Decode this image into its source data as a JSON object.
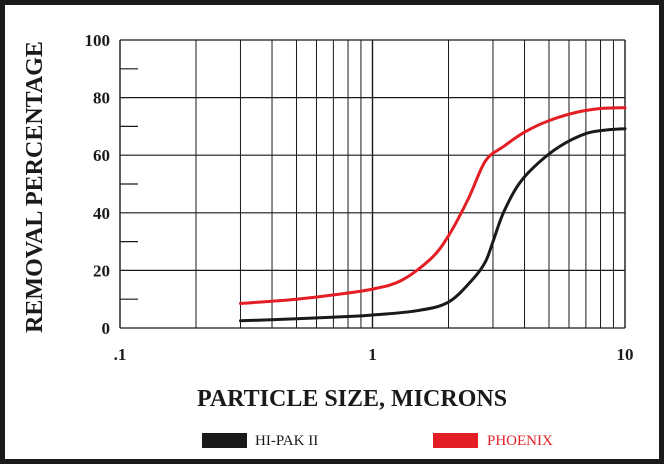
{
  "chart_data": {
    "type": "line",
    "xlabel": "PARTICLE SIZE, MICRONS",
    "ylabel": "REMOVAL PERCENTAGE",
    "x_scale": "log",
    "xlim": [
      0.1,
      10
    ],
    "ylim": [
      0,
      100
    ],
    "x_ticks": [
      {
        "value": 0.1,
        "label": ".1"
      },
      {
        "value": 1,
        "label": "1"
      },
      {
        "value": 10,
        "label": "10"
      }
    ],
    "y_ticks": [
      {
        "value": 0,
        "label": "0"
      },
      {
        "value": 20,
        "label": "20"
      },
      {
        "value": 40,
        "label": "40"
      },
      {
        "value": 60,
        "label": "60"
      },
      {
        "value": 80,
        "label": "80"
      },
      {
        "value": 100,
        "label": "100"
      }
    ],
    "grid": true,
    "legend_position": "bottom",
    "series": [
      {
        "name": "HI-PAK II",
        "color": "#1a1a1a",
        "points": [
          [
            0.3,
            2.5
          ],
          [
            0.5,
            3.2
          ],
          [
            0.8,
            4.0
          ],
          [
            1.0,
            4.5
          ],
          [
            1.5,
            6.0
          ],
          [
            2.0,
            9.0
          ],
          [
            2.5,
            17.0
          ],
          [
            2.8,
            23.0
          ],
          [
            3.0,
            30.0
          ],
          [
            3.3,
            40.0
          ],
          [
            3.8,
            50.0
          ],
          [
            4.5,
            57.0
          ],
          [
            5.5,
            63.0
          ],
          [
            7.0,
            67.5
          ],
          [
            8.5,
            68.8
          ],
          [
            10.0,
            69.2
          ]
        ]
      },
      {
        "name": "PHOENIX",
        "color": "#e31e24",
        "points": [
          [
            0.3,
            8.5
          ],
          [
            0.5,
            10.0
          ],
          [
            0.7,
            11.5
          ],
          [
            1.0,
            13.5
          ],
          [
            1.3,
            16.5
          ],
          [
            1.7,
            24.0
          ],
          [
            2.0,
            32.0
          ],
          [
            2.4,
            45.0
          ],
          [
            2.8,
            58.0
          ],
          [
            3.3,
            63.0
          ],
          [
            4.0,
            68.0
          ],
          [
            5.0,
            72.0
          ],
          [
            6.5,
            75.0
          ],
          [
            8.0,
            76.2
          ],
          [
            10.0,
            76.5
          ]
        ]
      }
    ]
  }
}
